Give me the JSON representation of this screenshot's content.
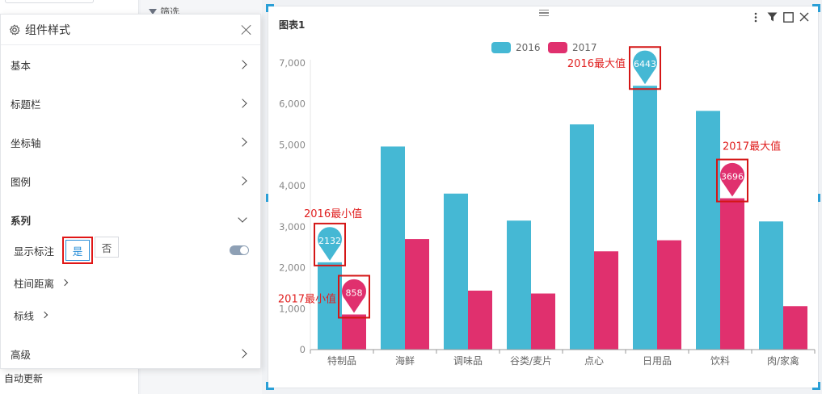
{
  "background": {
    "auto_update_label": "自动更新",
    "filter_label": "筛选"
  },
  "style_panel": {
    "title": "组件样式",
    "sections": {
      "basic": "基本",
      "title_bar": "标题栏",
      "axis": "坐标轴",
      "legend": "图例",
      "series": "系列",
      "advanced": "高级"
    },
    "series": {
      "show_label": "显示标注",
      "yes": "是",
      "no": "否",
      "bar_spacing": "柱间距离",
      "mark_line": "标线"
    }
  },
  "chart": {
    "title": "图表1",
    "colors": {
      "2016": "#45b8d4",
      "2017": "#e0306e"
    },
    "annotations": {
      "max_2016": "2016最大值",
      "max_2017": "2017最大值",
      "min_2016": "2016最小值",
      "min_2017": "2017最小值"
    }
  },
  "chart_data": {
    "type": "bar",
    "categories": [
      "特制品",
      "海鲜",
      "调味品",
      "谷类/麦片",
      "点心",
      "日用品",
      "饮料",
      "肉/家禽"
    ],
    "series": [
      {
        "name": "2016",
        "values": [
          2132,
          4960,
          3810,
          3150,
          5500,
          6443,
          5830,
          3130
        ]
      },
      {
        "name": "2017",
        "values": [
          858,
          2700,
          1440,
          1370,
          2400,
          2670,
          3696,
          1060
        ]
      }
    ],
    "ylim": [
      0,
      7000
    ],
    "yticks": [
      0,
      1000,
      2000,
      3000,
      4000,
      5000,
      6000,
      7000
    ],
    "ytick_labels": [
      "0",
      "1,000",
      "2,000",
      "3,000",
      "4,000",
      "5,000",
      "6,000",
      "7,000"
    ],
    "legend": [
      "2016",
      "2017"
    ],
    "legend_position": "top-center",
    "markers": [
      {
        "series": "2016",
        "type": "max",
        "category": "日用品",
        "value": 6443,
        "label": "6443"
      },
      {
        "series": "2017",
        "type": "max",
        "category": "饮料",
        "value": 3696,
        "label": "3696"
      },
      {
        "series": "2016",
        "type": "min",
        "category": "特制品",
        "value": 2132,
        "label": "2132"
      },
      {
        "series": "2017",
        "type": "min",
        "category": "特制品",
        "value": 858,
        "label": "858"
      }
    ],
    "grid": false
  }
}
